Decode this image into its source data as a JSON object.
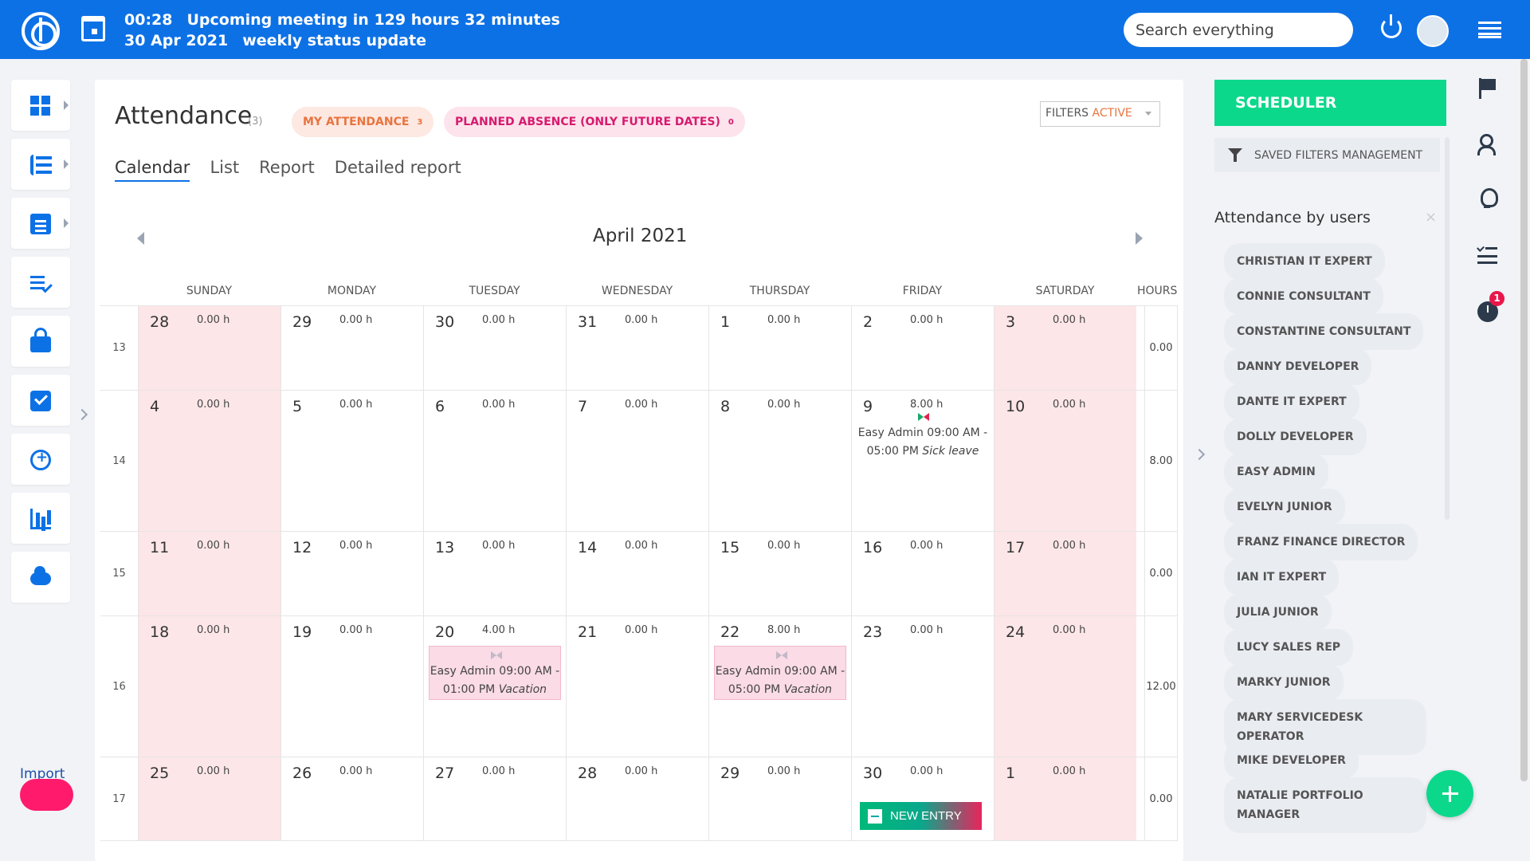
{
  "topbar": {
    "time": "00:28",
    "meeting_text": "Upcoming meeting in 129 hours 32 minutes",
    "date": "30 Apr 2021",
    "meeting_name": "weekly status update",
    "search_placeholder": "Search everything"
  },
  "leftnav": {
    "items": [
      "dashboard-icon",
      "project-tree-icon",
      "clipboard-icon",
      "task-list-icon",
      "lock-icon",
      "checklist-icon",
      "alarm-icon",
      "bar-chart-icon",
      "cloud-icon"
    ],
    "import_label": "Import"
  },
  "page": {
    "title": "Attendance",
    "count": "(3)",
    "pill_my_attendance": "MY ATTENDANCE",
    "pill_my_attendance_count": "3",
    "pill_planned_absence": "PLANNED ABSENCE (ONLY FUTURE DATES)",
    "pill_planned_absence_count": "0",
    "filters_label": "FILTERS",
    "filters_state": "ACTIVE",
    "tabs": [
      "Calendar",
      "List",
      "Report",
      "Detailed report"
    ],
    "active_tab": "Calendar"
  },
  "calendar": {
    "month": "April 2021",
    "days_of_week": [
      "SUNDAY",
      "MONDAY",
      "TUESDAY",
      "WEDNESDAY",
      "THURSDAY",
      "FRIDAY",
      "SATURDAY"
    ],
    "hours_header": "HOURS",
    "weeks": [
      {
        "week": "13",
        "total": "0.00",
        "days": [
          {
            "d": "28",
            "h": "0.00 h"
          },
          {
            "d": "29",
            "h": "0.00 h"
          },
          {
            "d": "30",
            "h": "0.00 h"
          },
          {
            "d": "31",
            "h": "0.00 h"
          },
          {
            "d": "1",
            "h": "0.00 h"
          },
          {
            "d": "2",
            "h": "0.00 h"
          },
          {
            "d": "3",
            "h": "0.00 h"
          }
        ]
      },
      {
        "week": "14",
        "total": "8.00",
        "days": [
          {
            "d": "4",
            "h": "0.00 h"
          },
          {
            "d": "5",
            "h": "0.00 h"
          },
          {
            "d": "6",
            "h": "0.00 h"
          },
          {
            "d": "7",
            "h": "0.00 h"
          },
          {
            "d": "8",
            "h": "0.00 h"
          },
          {
            "d": "9",
            "h": "8.00 h",
            "event": {
              "who": "Easy Admin",
              "time": "09:00 AM - 05:00 PM",
              "type": "Sick leave",
              "style": "plain"
            }
          },
          {
            "d": "10",
            "h": "0.00 h"
          }
        ]
      },
      {
        "week": "15",
        "total": "0.00",
        "days": [
          {
            "d": "11",
            "h": "0.00 h"
          },
          {
            "d": "12",
            "h": "0.00 h"
          },
          {
            "d": "13",
            "h": "0.00 h"
          },
          {
            "d": "14",
            "h": "0.00 h"
          },
          {
            "d": "15",
            "h": "0.00 h"
          },
          {
            "d": "16",
            "h": "0.00 h"
          },
          {
            "d": "17",
            "h": "0.00 h"
          }
        ]
      },
      {
        "week": "16",
        "total": "12.00",
        "days": [
          {
            "d": "18",
            "h": "0.00 h"
          },
          {
            "d": "19",
            "h": "0.00 h"
          },
          {
            "d": "20",
            "h": "4.00 h",
            "event": {
              "who": "Easy Admin",
              "time": "09:00 AM - 01:00 PM",
              "type": "Vacation",
              "style": "box"
            }
          },
          {
            "d": "21",
            "h": "0.00 h"
          },
          {
            "d": "22",
            "h": "8.00 h",
            "event": {
              "who": "Easy Admin",
              "time": "09:00 AM - 05:00 PM",
              "type": "Vacation",
              "style": "box"
            }
          },
          {
            "d": "23",
            "h": "0.00 h"
          },
          {
            "d": "24",
            "h": "0.00 h"
          }
        ]
      },
      {
        "week": "17",
        "total": "0.00",
        "days": [
          {
            "d": "25",
            "h": "0.00 h"
          },
          {
            "d": "26",
            "h": "0.00 h"
          },
          {
            "d": "27",
            "h": "0.00 h"
          },
          {
            "d": "28",
            "h": "0.00 h"
          },
          {
            "d": "29",
            "h": "0.00 h"
          },
          {
            "d": "30",
            "h": "0.00 h",
            "new_entry": "NEW ENTRY"
          },
          {
            "d": "1",
            "h": "0.00 h"
          }
        ]
      }
    ]
  },
  "sidebar": {
    "scheduler": "SCHEDULER",
    "saved_filters": "SAVED FILTERS MANAGEMENT",
    "section_title": "Attendance by users",
    "close": "×",
    "users": [
      "CHRISTIAN IT EXPERT",
      "CONNIE CONSULTANT",
      "CONSTANTINE CONSULTANT",
      "DANNY DEVELOPER",
      "DANTE IT EXPERT",
      "DOLLY DEVELOPER",
      "EASY ADMIN",
      "EVELYN JUNIOR",
      "FRANZ FINANCE DIRECTOR",
      "IAN IT EXPERT",
      "JULIA JUNIOR",
      "LUCY SALES REP",
      "MARKY JUNIOR",
      "MARY SERVICEDESK OPERATOR",
      "MIKE DEVELOPER",
      "NATALIE PORTFOLIO MANAGER"
    ]
  },
  "rightrail": {
    "icons": [
      "flag-icon",
      "user-search-icon",
      "lightbulb-icon",
      "task-checklist-icon",
      "timer-icon"
    ],
    "timer_badge": "1"
  },
  "colors": {
    "brand": "#0d71e6",
    "scheduler": "#0cd88c",
    "weekend": "#fde6e8",
    "my_attendance": "#e8743f",
    "planned_absence": "#d61a6e"
  }
}
